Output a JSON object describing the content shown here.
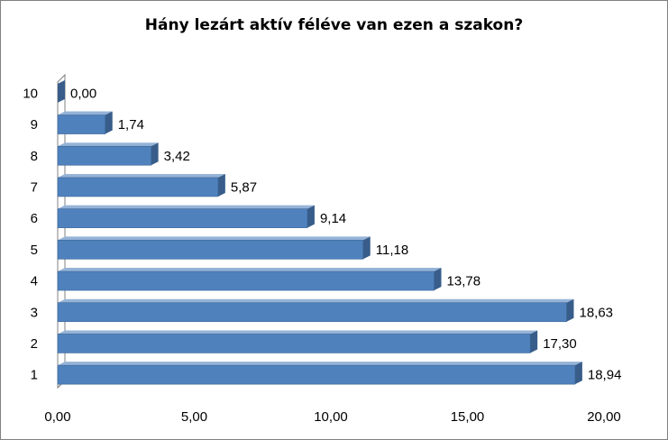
{
  "chart_data": {
    "type": "bar",
    "orientation": "horizontal",
    "title": "Hány lezárt aktív féléve van ezen a szakon?",
    "categories": [
      "1",
      "2",
      "3",
      "4",
      "5",
      "6",
      "7",
      "8",
      "9",
      "10"
    ],
    "values": [
      18.94,
      17.3,
      18.63,
      13.78,
      11.18,
      9.14,
      5.87,
      3.42,
      1.74,
      0.0
    ],
    "value_labels": [
      "18,94",
      "17,30",
      "18,63",
      "13,78",
      "11,18",
      "9,14",
      "5,87",
      "3,42",
      "1,74",
      "0,00"
    ],
    "x_ticks": [
      "0,00",
      "5,00",
      "10,00",
      "15,00",
      "20,00"
    ],
    "xlim": [
      0,
      20
    ],
    "xlabel": "",
    "ylabel": "",
    "grid": false,
    "legend": "none",
    "bar_color": "#4F81BD",
    "bar_top_color": "#95B3D7",
    "bar_side_color": "#385D8A"
  }
}
